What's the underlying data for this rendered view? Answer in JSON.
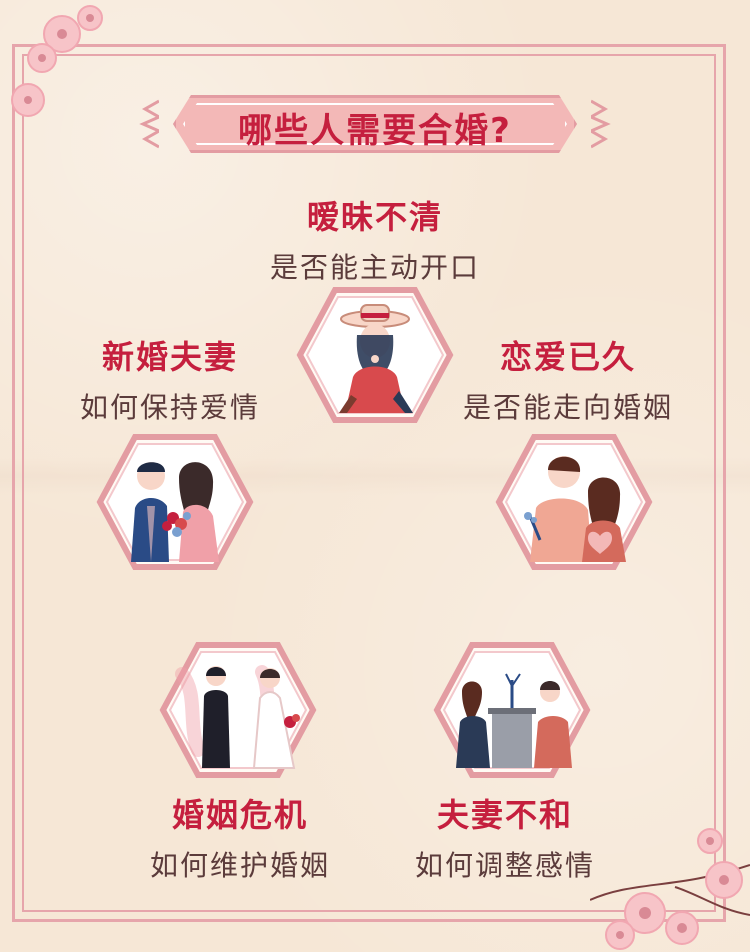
{
  "title": "哪些人需要合婚?",
  "items": [
    {
      "head": "暧昧不清",
      "sub": "是否能主动开口"
    },
    {
      "head": "新婚夫妻",
      "sub": "如何保持爱情"
    },
    {
      "head": "恋爱已久",
      "sub": "是否能走向婚姻"
    },
    {
      "head": "婚姻危机",
      "sub": "如何维护婚姻"
    },
    {
      "head": "夫妻不和",
      "sub": "如何调整感情"
    }
  ],
  "icons": [
    "cherry-blossom-icon",
    "woman-with-hat-illustration",
    "newlywed-couple-illustration",
    "couple-with-flowers-illustration",
    "separated-couple-illustration",
    "arguing-couple-illustration"
  ],
  "colors": {
    "accent": "#c51f3e",
    "frame": "#e6a5ab",
    "background": "#f6e7d6",
    "subtext": "#5b3b3b"
  }
}
